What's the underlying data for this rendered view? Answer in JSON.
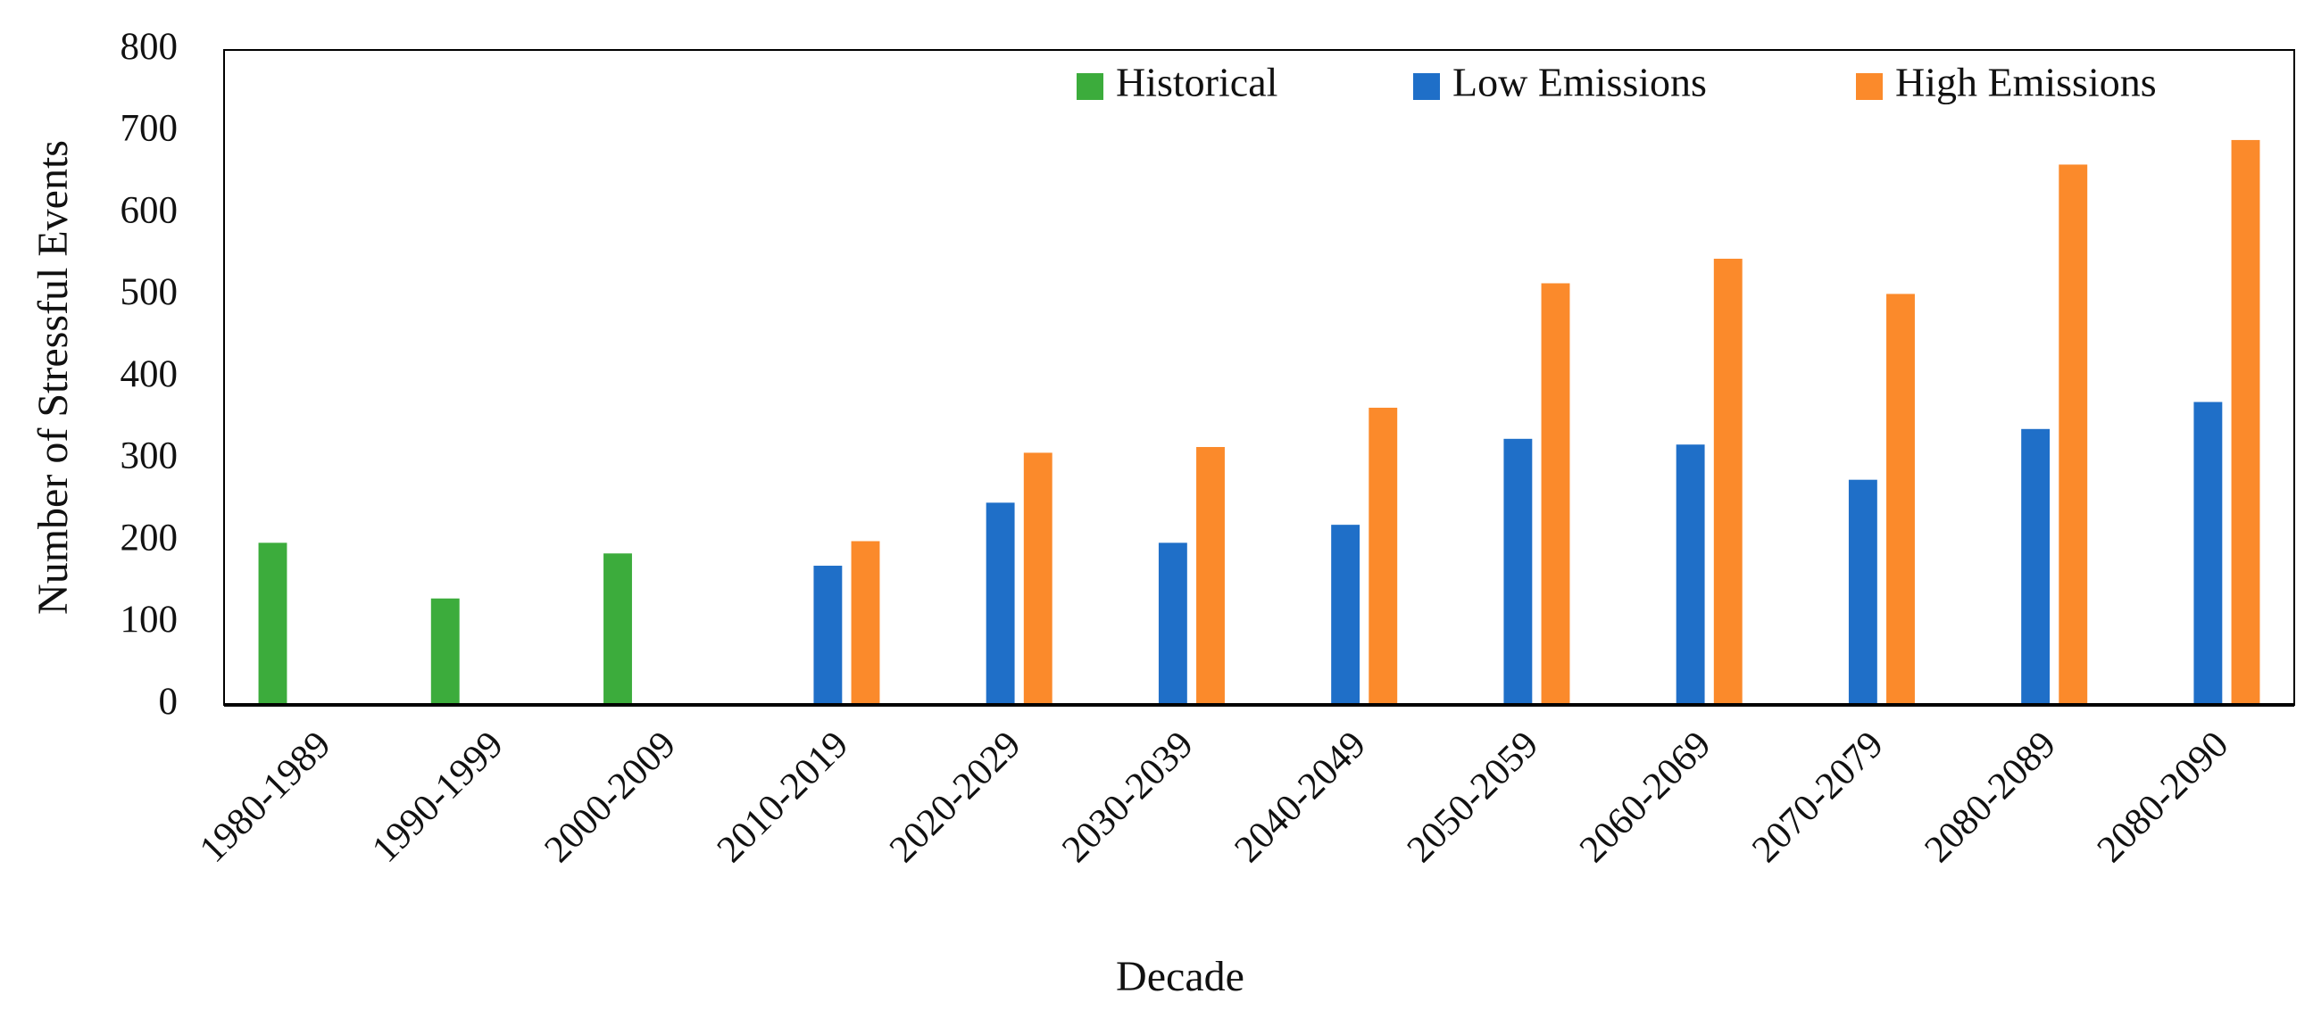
{
  "chart_data": {
    "type": "bar",
    "x_label": "Decade",
    "y_label": "Number of Stressful Events",
    "categories": [
      "1980-1989",
      "1990-1999",
      "2000-2009",
      "2010-2019",
      "2020-2029",
      "2030-2039",
      "2040-2049",
      "2050-2059",
      "2060-2069",
      "2070-2079",
      "2080-2089",
      "2080-2090"
    ],
    "series": [
      {
        "name": "Historical",
        "color": "#3cac3c",
        "values": [
          198,
          130,
          185,
          null,
          null,
          null,
          null,
          null,
          null,
          null,
          null,
          null
        ]
      },
      {
        "name": "Low Emissions",
        "color": "#1f6fc8",
        "values": [
          null,
          null,
          null,
          170,
          247,
          198,
          220,
          325,
          318,
          275,
          337,
          370
        ]
      },
      {
        "name": "High Emissions",
        "color": "#fb8a2b",
        "values": [
          null,
          null,
          null,
          200,
          308,
          315,
          363,
          515,
          545,
          502,
          660,
          690
        ]
      }
    ],
    "ylim": [
      0,
      800
    ],
    "yticks": [
      0,
      100,
      200,
      300,
      400,
      500,
      600,
      700,
      800
    ],
    "grid": false,
    "legend": "top-right"
  }
}
